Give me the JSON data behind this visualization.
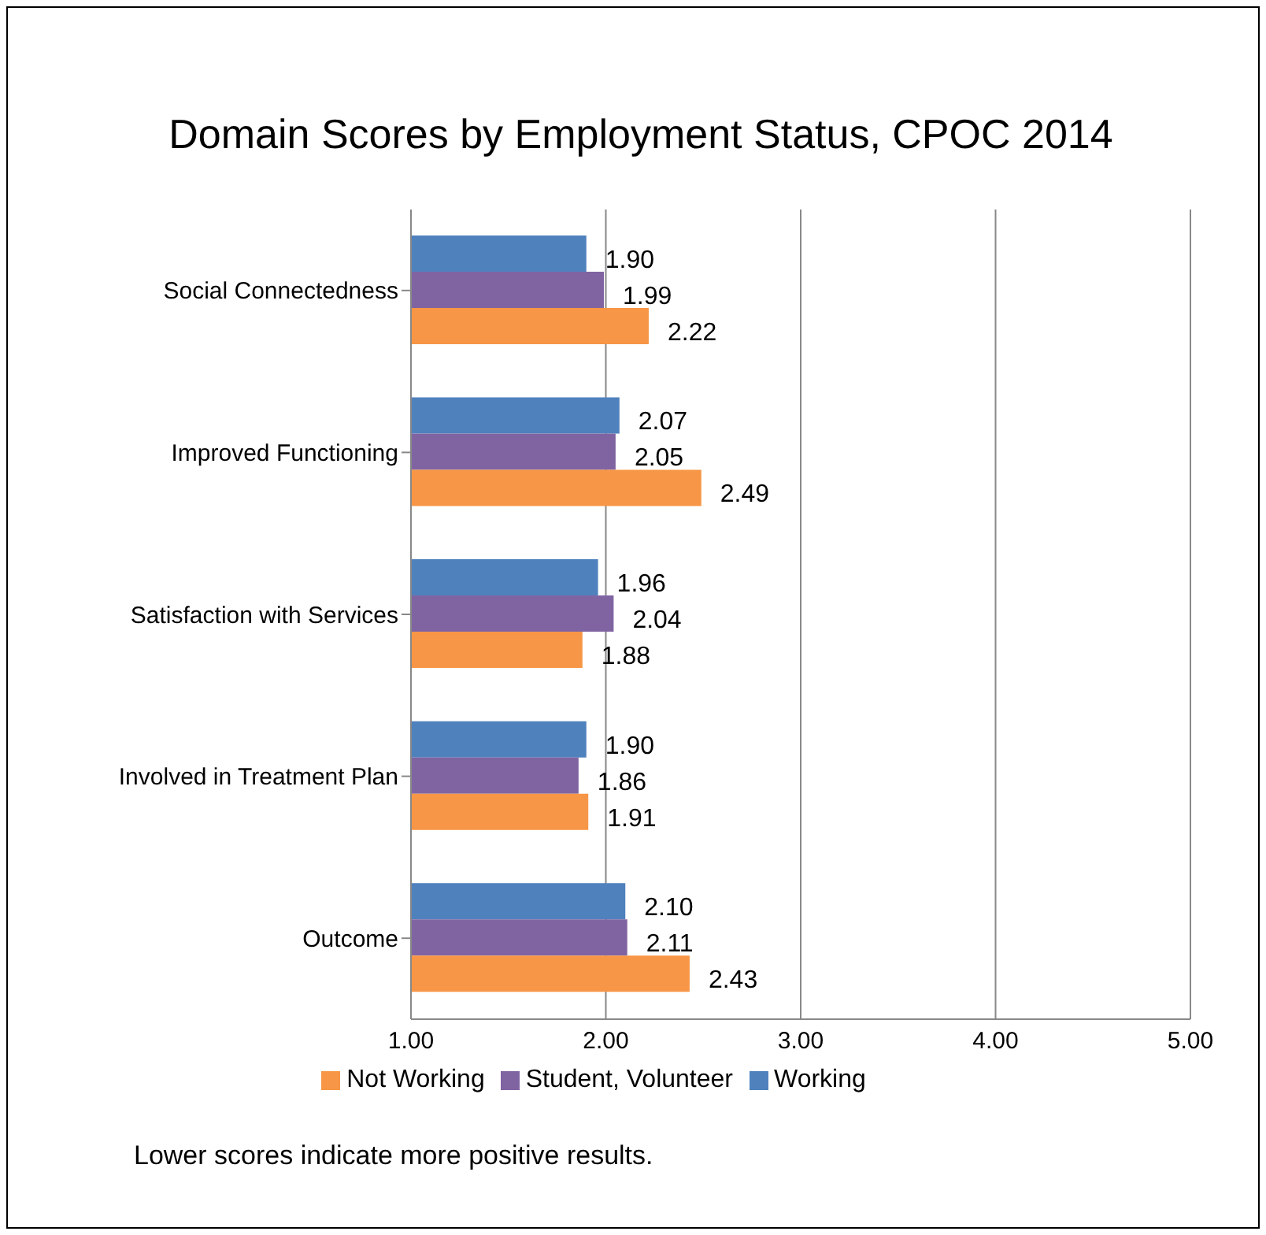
{
  "chart_data": {
    "type": "bar",
    "orientation": "horizontal",
    "title": "Domain Scores by Employment Status, CPOC 2014",
    "categories": [
      "Social Connectedness",
      "Improved Functioning",
      "Satisfaction with Services",
      "Involved in Treatment Plan",
      "Outcome"
    ],
    "series": [
      {
        "name": "Working",
        "color": "#4f81bd",
        "values": [
          1.9,
          2.07,
          1.96,
          1.9,
          2.1
        ],
        "value_labels": [
          "1.90",
          "2.07",
          "1.96",
          "1.90",
          "2.10"
        ]
      },
      {
        "name": "Student, Volunteer",
        "color": "#8064a2",
        "values": [
          1.99,
          2.05,
          2.04,
          1.86,
          2.11
        ],
        "value_labels": [
          "1.99",
          "2.05",
          "2.04",
          "1.86",
          "2.11"
        ]
      },
      {
        "name": "Not Working",
        "color": "#f79646",
        "values": [
          2.22,
          2.49,
          1.88,
          1.91,
          2.43
        ],
        "value_labels": [
          "2.22",
          "2.49",
          "1.88",
          "1.91",
          "2.43"
        ]
      }
    ],
    "xlim": [
      1,
      5
    ],
    "xticks": [
      {
        "value": 1,
        "label": "1.00"
      },
      {
        "value": 2,
        "label": "2.00"
      },
      {
        "value": 3,
        "label": "3.00"
      },
      {
        "value": 4,
        "label": "4.00"
      },
      {
        "value": 5,
        "label": "5.00"
      }
    ],
    "grid": "x",
    "legend": "bottom",
    "annotations": [
      "Lower scores indicate more positive results."
    ]
  }
}
